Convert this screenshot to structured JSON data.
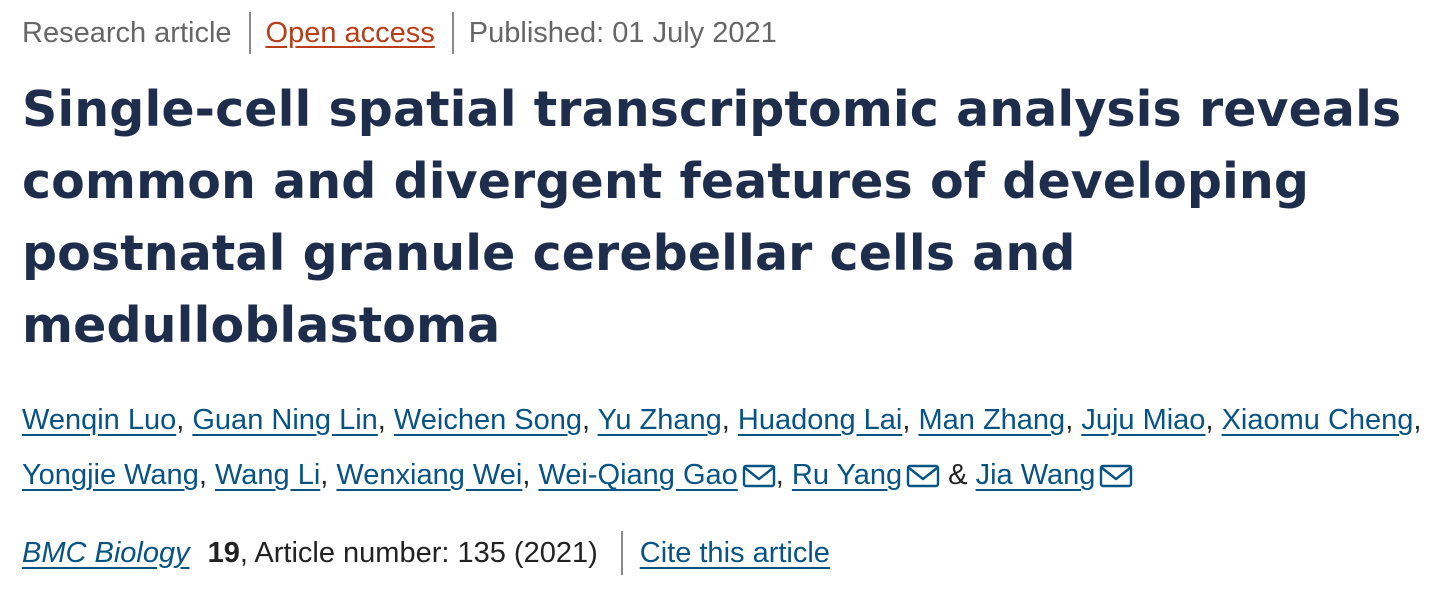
{
  "article_meta": {
    "type": "Research article",
    "access": "Open access",
    "published": "Published: 01 July 2021"
  },
  "title": {
    "lines": [
      "Single-cell spatial transcriptomic analysis reveals",
      "common and divergent features of developing",
      "postnatal granule cerebellar cells and",
      "medulloblastoma"
    ]
  },
  "authors": {
    "items": [
      {
        "name": "Wenqin Luo",
        "after": ", "
      },
      {
        "name": "Guan Ning Lin",
        "after": ", "
      },
      {
        "name": "Weichen Song",
        "after": ", "
      },
      {
        "name": "Yu Zhang",
        "after": ", "
      },
      {
        "name": "Huadong Lai",
        "after": ", "
      },
      {
        "name": "Man Zhang",
        "after": ", "
      },
      {
        "name": "Juju Miao",
        "after": ", "
      },
      {
        "name": "Xiaomu Cheng",
        "after": ", "
      },
      {
        "name": "Yongjie Wang",
        "after": ", "
      },
      {
        "name": "Wang Li",
        "after": ", "
      },
      {
        "name": "Wenxiang Wei",
        "after": ", "
      },
      {
        "name": "Wei-Qiang Gao",
        "after": ", ",
        "mail_icon": "envelope-icon"
      },
      {
        "name": "Ru Yang",
        "after": " & ",
        "mail_icon": "envelope-icon"
      },
      {
        "name": "Jia Wang",
        "after": "",
        "mail_icon": "envelope-icon"
      }
    ]
  },
  "citation": {
    "journal": "BMC Biology",
    "volume": "19",
    "article_number_text": ", Article number: 135 (2021)",
    "cite_label": "Cite this article"
  },
  "colors": {
    "title": "#1f2d4d",
    "link": "#065384",
    "open_access": "#b83d18",
    "meta_text": "#666666",
    "body_text": "#222222"
  }
}
